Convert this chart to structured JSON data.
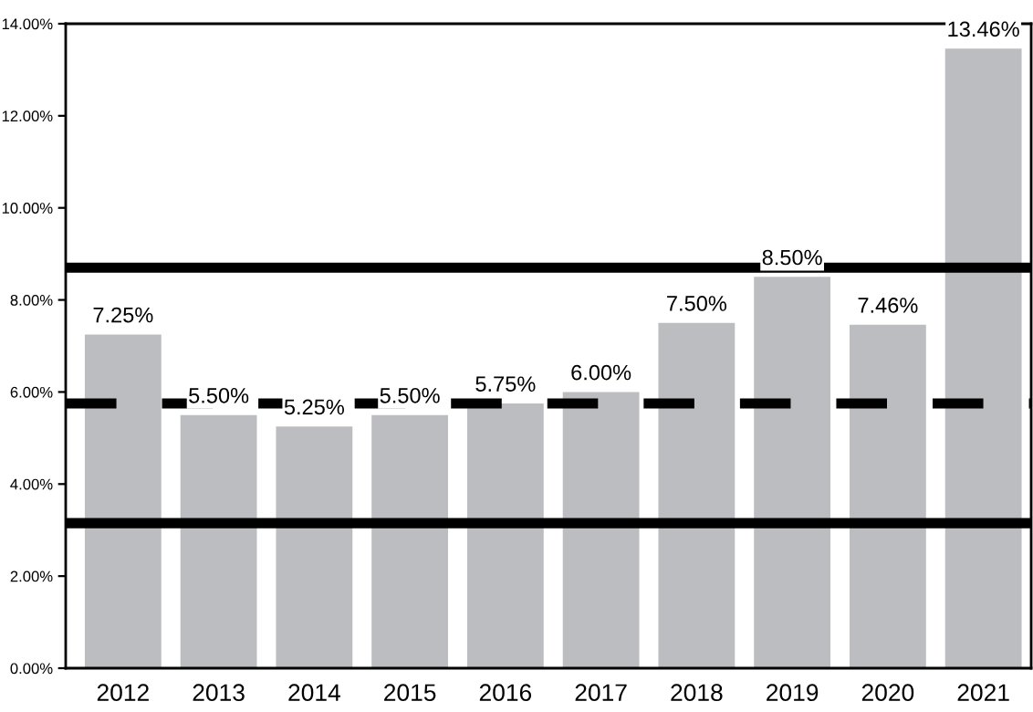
{
  "chart_data": {
    "type": "bar",
    "categories": [
      "2012",
      "2013",
      "2014",
      "2015",
      "2016",
      "2017",
      "2018",
      "2019",
      "2020",
      "2021"
    ],
    "values": [
      7.25,
      5.5,
      5.25,
      5.5,
      5.75,
      6.0,
      7.5,
      8.5,
      7.46,
      13.46
    ],
    "value_labels": [
      "7.25%",
      "5.50%",
      "5.25%",
      "5.50%",
      "5.75%",
      "6.00%",
      "7.50%",
      "8.50%",
      "7.46%",
      "13.46%"
    ],
    "color": "#bcbdc1",
    "ylim": [
      0,
      14
    ],
    "yticks": [
      {
        "value": 0,
        "label": "0.00%"
      },
      {
        "value": 2,
        "label": "2.00%"
      },
      {
        "value": 4,
        "label": "4.00%"
      },
      {
        "value": 6,
        "label": "6.00%"
      },
      {
        "value": 8,
        "label": "8.00%"
      },
      {
        "value": 10,
        "label": "10.00%"
      },
      {
        "value": 12,
        "label": "12.00%"
      },
      {
        "value": 14,
        "label": "14.00%"
      }
    ],
    "ref_lines": [
      {
        "axis": "y",
        "value": 8.7,
        "color": "#000000",
        "line_style": "solid"
      },
      {
        "axis": "y",
        "value": 5.75,
        "color": "#000000",
        "line_style": "dashed"
      },
      {
        "axis": "y",
        "value": 3.15,
        "color": "#000000",
        "line_style": "solid"
      }
    ],
    "grid": false,
    "legend": false
  }
}
